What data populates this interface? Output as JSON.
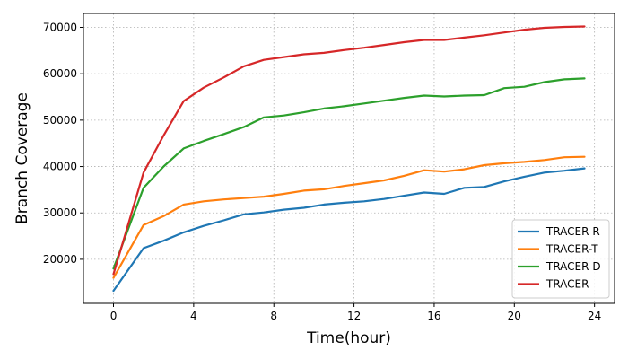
{
  "chart_data": {
    "type": "line",
    "xlabel": "Time(hour)",
    "ylabel": "Branch Coverage",
    "xlim": [
      -1.5,
      25
    ],
    "ylim": [
      10500,
      73000
    ],
    "xticks": [
      0,
      4,
      8,
      12,
      16,
      20,
      24
    ],
    "yticks": [
      20000,
      30000,
      40000,
      50000,
      60000,
      70000
    ],
    "grid": true,
    "legend_position": "lower-right",
    "series": [
      {
        "name": "TRACER-R",
        "color": "#1f77b4",
        "x": [
          0,
          1.5,
          2.5,
          3.5,
          4.5,
          5.5,
          6.5,
          7.5,
          8.5,
          9.5,
          10.5,
          11.5,
          12.5,
          13.5,
          14.5,
          15.5,
          16.5,
          17.5,
          18.5,
          19.5,
          20.5,
          21.5,
          22.5,
          23.5
        ],
        "values": [
          13200,
          22400,
          24000,
          25800,
          27200,
          28400,
          29700,
          30100,
          30700,
          31100,
          31800,
          32200,
          32500,
          33000,
          33700,
          34400,
          34100,
          35400,
          35600,
          36800,
          37800,
          38700,
          39100,
          39600
        ]
      },
      {
        "name": "TRACER-T",
        "color": "#ff7f0e",
        "x": [
          0,
          1.5,
          2.5,
          3.5,
          4.5,
          5.5,
          6.5,
          7.5,
          8.5,
          9.5,
          10.5,
          11.5,
          12.5,
          13.5,
          14.5,
          15.5,
          16.5,
          17.5,
          18.5,
          19.5,
          20.5,
          21.5,
          22.5,
          23.5
        ],
        "values": [
          16000,
          27400,
          29300,
          31800,
          32500,
          32900,
          33200,
          33500,
          34100,
          34800,
          35100,
          35800,
          36400,
          37000,
          38000,
          39200,
          38900,
          39400,
          40300,
          40700,
          41000,
          41400,
          42000,
          42100
        ]
      },
      {
        "name": "TRACER-D",
        "color": "#2ca02c",
        "x": [
          0,
          1.5,
          2.5,
          3.5,
          4.5,
          5.5,
          6.5,
          7.5,
          8.5,
          9.5,
          10.5,
          11.5,
          12.5,
          13.5,
          14.5,
          15.5,
          16.5,
          17.5,
          18.5,
          19.5,
          20.5,
          21.5,
          22.5,
          23.5
        ],
        "values": [
          18000,
          35400,
          40000,
          43900,
          45500,
          47000,
          48500,
          50600,
          51000,
          51700,
          52500,
          53000,
          53600,
          54200,
          54800,
          55300,
          55100,
          55300,
          55400,
          56900,
          57200,
          58200,
          58800,
          59000
        ]
      },
      {
        "name": "TRACER",
        "color": "#d62728",
        "x": [
          0,
          1.5,
          2.5,
          3.5,
          4.5,
          5.5,
          6.5,
          7.5,
          8.5,
          9.5,
          10.5,
          11.5,
          12.5,
          13.5,
          14.5,
          15.5,
          16.5,
          17.5,
          18.5,
          19.5,
          20.5,
          21.5,
          22.5,
          23.5
        ],
        "values": [
          16800,
          38700,
          46700,
          54100,
          57000,
          59200,
          61600,
          63000,
          63600,
          64200,
          64500,
          65100,
          65600,
          66200,
          66800,
          67300,
          67300,
          67800,
          68300,
          68900,
          69500,
          69900,
          70100,
          70200
        ]
      }
    ]
  }
}
